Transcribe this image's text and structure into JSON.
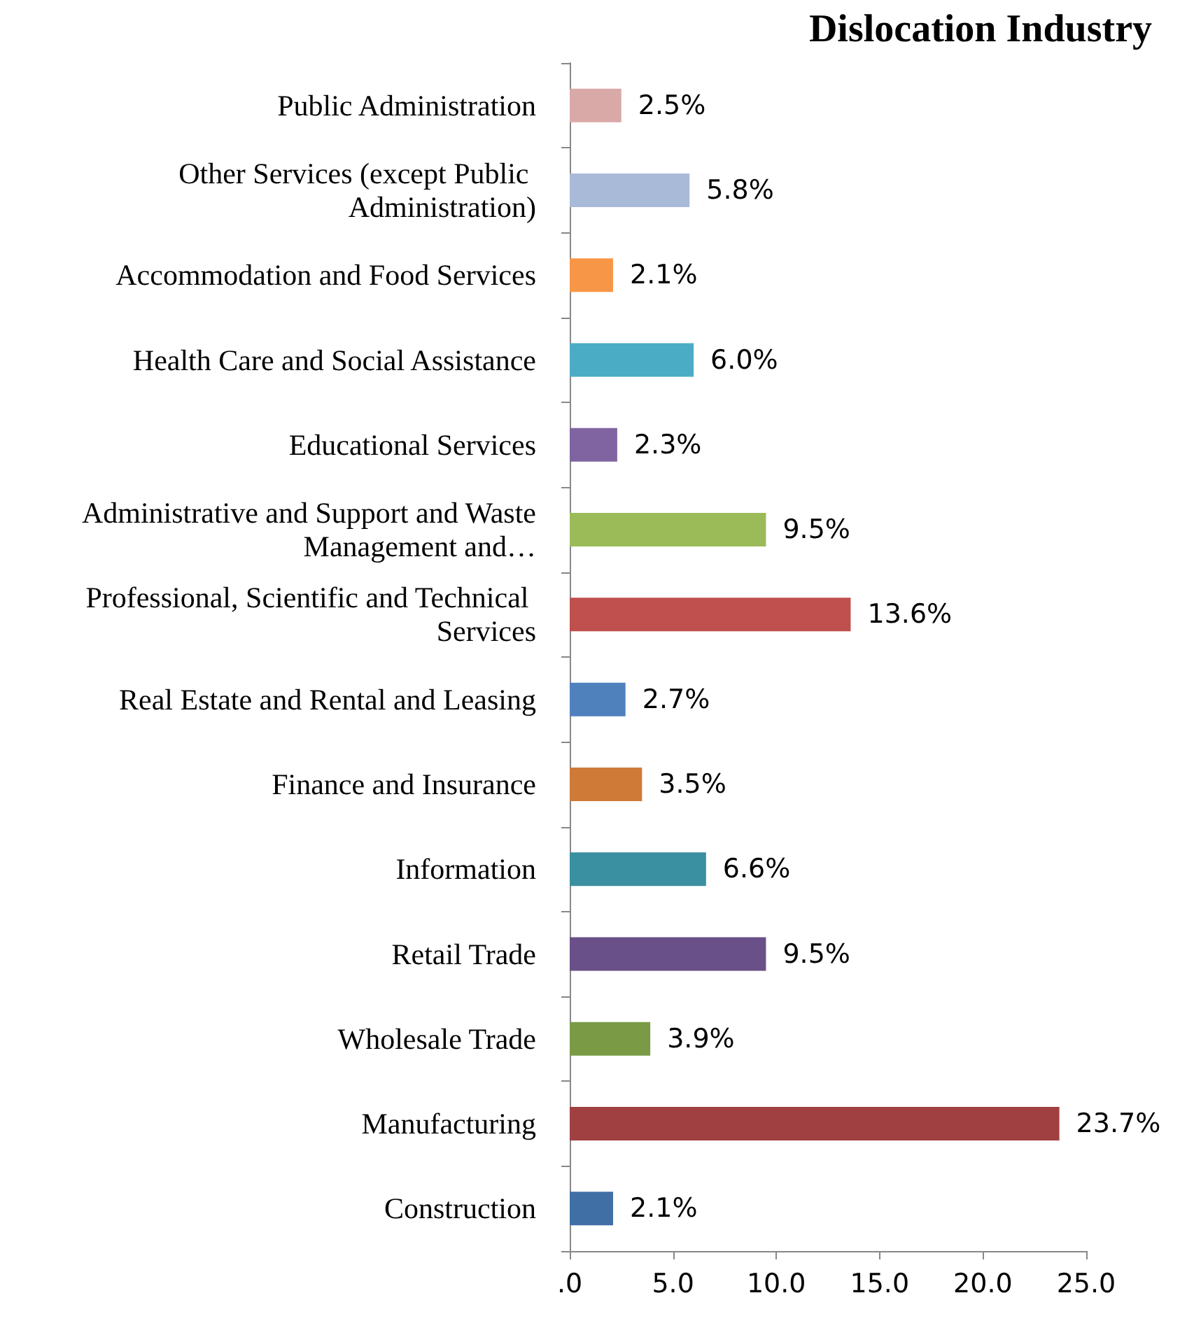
{
  "chart_data": {
    "type": "bar",
    "orientation": "horizontal",
    "title": "Dislocation Industry",
    "categories": [
      "Public Administration",
      "Other Services (except Public Administration)",
      "Accommodation and Food Services",
      "Health Care and Social Assistance",
      "Educational Services",
      "Administrative and Support and Waste Management and…",
      "Professional, Scientific and Technical Services",
      "Real Estate and Rental and Leasing",
      "Finance and Insurance",
      "Information",
      "Retail Trade",
      "Wholesale Trade",
      "Manufacturing",
      "Construction"
    ],
    "values": [
      2.5,
      5.8,
      2.1,
      6.0,
      2.3,
      9.5,
      13.6,
      2.7,
      3.5,
      6.6,
      9.5,
      3.9,
      23.7,
      2.1
    ],
    "value_labels": [
      "2.5%",
      "5.8%",
      "2.1%",
      "6.0%",
      "2.3%",
      "9.5%",
      "13.6%",
      "2.7%",
      "3.5%",
      "6.6%",
      "9.5%",
      "3.9%",
      "23.7%",
      "2.1%"
    ],
    "colors": [
      "#d9a9a8",
      "#a9b9d8",
      "#f79646",
      "#4bacc6",
      "#8064a2",
      "#9bbb59",
      "#c0504d",
      "#4f81bd",
      "#d07a38",
      "#3a8fa0",
      "#6a5088",
      "#7a9a45",
      "#a04040",
      "#406fa5"
    ],
    "xlim": [
      0,
      25
    ],
    "xticks": [
      {
        "value": 0,
        "label": ".0"
      },
      {
        "value": 5,
        "label": "5.0"
      },
      {
        "value": 10,
        "label": "10.0"
      },
      {
        "value": 15,
        "label": "15.0"
      },
      {
        "value": 20,
        "label": "20.0"
      },
      {
        "value": 25,
        "label": "25.0"
      }
    ],
    "grid": false
  }
}
